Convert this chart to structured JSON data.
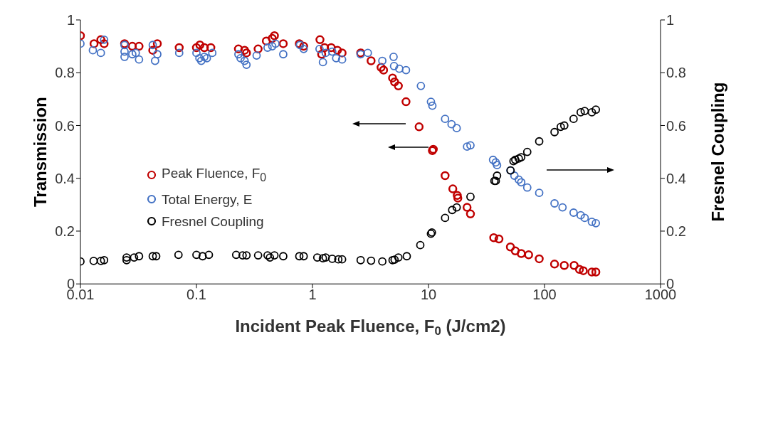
{
  "chart_data": {
    "type": "scatter",
    "xlabel": "Incident Peak Fluence, F$_{0}$ (J/cm2)",
    "ylabel": "Transmission",
    "y2label": "Fresnel Coupling",
    "log": "x",
    "xlim": [
      0.01,
      1000
    ],
    "xticks": [
      0.01,
      0.1,
      1,
      10,
      100,
      1000
    ],
    "ylim": [
      0,
      1
    ],
    "yticks": [
      0,
      0.2,
      0.4,
      0.6,
      0.8,
      1
    ],
    "y2lim": [
      0,
      1
    ],
    "y2ticks": [
      0,
      0.2,
      0.4,
      0.6,
      0.8,
      1
    ],
    "grid": false,
    "legend": "left",
    "marker": "circle",
    "series": [
      {
        "name": "Peak Fluence, F$_{0}$",
        "color": "#c00000",
        "x": [
          0.01,
          0.0131,
          0.015,
          0.016,
          0.024,
          0.028,
          0.032,
          0.042,
          0.046,
          0.071,
          0.1,
          0.107,
          0.117,
          0.133,
          0.23,
          0.26,
          0.27,
          0.34,
          0.4,
          0.45,
          0.47,
          0.56,
          0.77,
          0.84,
          1.16,
          1.2,
          1.27,
          1.45,
          1.64,
          1.8,
          2.6,
          3.2,
          3.9,
          4.1,
          4.9,
          5.1,
          5.5,
          6.4,
          8.3,
          10.8,
          11,
          13.9,
          16.2,
          17.7,
          17.9,
          21.5,
          23,
          36.5,
          40.5,
          50.8,
          56,
          63,
          73,
          90,
          122,
          148,
          180,
          200,
          216,
          256,
          277
        ],
        "values": [
          0.94,
          0.91,
          0.925,
          0.91,
          0.91,
          0.9,
          0.9,
          0.885,
          0.91,
          0.895,
          0.895,
          0.905,
          0.895,
          0.895,
          0.89,
          0.885,
          0.875,
          0.89,
          0.92,
          0.93,
          0.94,
          0.91,
          0.91,
          0.9,
          0.925,
          0.87,
          0.895,
          0.895,
          0.885,
          0.875,
          0.875,
          0.845,
          0.82,
          0.81,
          0.78,
          0.765,
          0.75,
          0.69,
          0.595,
          0.505,
          0.51,
          0.41,
          0.36,
          0.335,
          0.325,
          0.29,
          0.265,
          0.175,
          0.17,
          0.14,
          0.125,
          0.115,
          0.11,
          0.095,
          0.075,
          0.07,
          0.07,
          0.055,
          0.05,
          0.045,
          0.045
        ]
      },
      {
        "name": "Total Energy, E",
        "color": "#4472c4",
        "x": [
          0.01,
          0.0128,
          0.015,
          0.016,
          0.024,
          0.024,
          0.024,
          0.028,
          0.03,
          0.032,
          0.042,
          0.044,
          0.046,
          0.071,
          0.1,
          0.106,
          0.11,
          0.117,
          0.123,
          0.137,
          0.23,
          0.24,
          0.26,
          0.27,
          0.33,
          0.41,
          0.45,
          0.48,
          0.56,
          0.78,
          0.84,
          1.15,
          1.23,
          1.3,
          1.48,
          1.6,
          1.8,
          2.6,
          3,
          4,
          5,
          5.05,
          5.6,
          6.4,
          8.6,
          10.5,
          10.8,
          13.9,
          15.8,
          17.5,
          21.5,
          23,
          36,
          38,
          39,
          50.8,
          55,
          60,
          63,
          71,
          90,
          122,
          143,
          178,
          205,
          222,
          256,
          277
        ],
        "values": [
          0.91,
          0.885,
          0.875,
          0.925,
          0.905,
          0.88,
          0.86,
          0.87,
          0.875,
          0.85,
          0.905,
          0.845,
          0.87,
          0.875,
          0.875,
          0.855,
          0.845,
          0.86,
          0.855,
          0.875,
          0.87,
          0.855,
          0.845,
          0.83,
          0.865,
          0.895,
          0.9,
          0.91,
          0.87,
          0.905,
          0.89,
          0.89,
          0.84,
          0.875,
          0.88,
          0.855,
          0.85,
          0.87,
          0.875,
          0.845,
          0.86,
          0.825,
          0.815,
          0.81,
          0.75,
          0.69,
          0.675,
          0.625,
          0.605,
          0.59,
          0.52,
          0.525,
          0.47,
          0.46,
          0.45,
          0.43,
          0.41,
          0.395,
          0.385,
          0.365,
          0.345,
          0.305,
          0.29,
          0.27,
          0.26,
          0.25,
          0.235,
          0.23
        ]
      },
      {
        "name": "Fresnel Coupling",
        "color": "#000000",
        "axis": "y2",
        "x": [
          0.01,
          0.013,
          0.015,
          0.016,
          0.025,
          0.025,
          0.029,
          0.032,
          0.042,
          0.045,
          0.07,
          0.1,
          0.113,
          0.128,
          0.22,
          0.25,
          0.27,
          0.34,
          0.41,
          0.43,
          0.47,
          0.56,
          0.77,
          0.84,
          1.1,
          1.23,
          1.3,
          1.48,
          1.67,
          1.8,
          2.6,
          3.2,
          4,
          4.9,
          5.1,
          5.5,
          6.5,
          8.5,
          10.5,
          10.7,
          13.9,
          16,
          17.5,
          23,
          37,
          38,
          39,
          51,
          54,
          56,
          60,
          63,
          71,
          90,
          122,
          138,
          148,
          178,
          205,
          222,
          256,
          277
        ],
        "values": [
          0.085,
          0.087,
          0.087,
          0.09,
          0.09,
          0.1,
          0.1,
          0.105,
          0.105,
          0.105,
          0.11,
          0.11,
          0.105,
          0.11,
          0.11,
          0.108,
          0.108,
          0.108,
          0.108,
          0.1,
          0.108,
          0.105,
          0.105,
          0.105,
          0.1,
          0.097,
          0.1,
          0.095,
          0.093,
          0.093,
          0.09,
          0.088,
          0.085,
          0.09,
          0.092,
          0.1,
          0.105,
          0.147,
          0.19,
          0.195,
          0.25,
          0.28,
          0.29,
          0.33,
          0.39,
          0.39,
          0.41,
          0.43,
          0.465,
          0.47,
          0.475,
          0.48,
          0.5,
          0.54,
          0.575,
          0.595,
          0.6,
          0.625,
          0.65,
          0.655,
          0.65,
          0.66
        ]
      }
    ]
  }
}
